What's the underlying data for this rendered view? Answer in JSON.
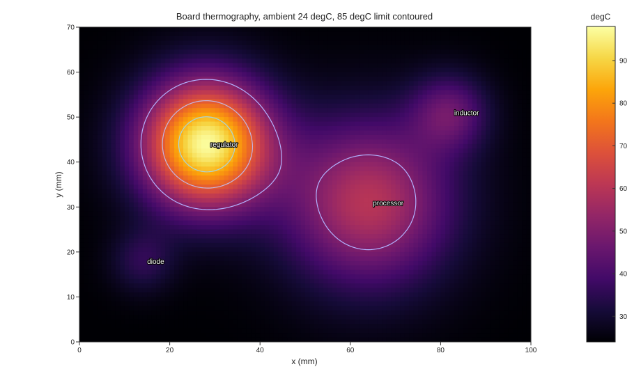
{
  "chart_data": {
    "type": "heatmap",
    "title": "Board thermography, ambient 24 degC, 85 degC limit contoured",
    "xlabel": "x (mm)",
    "ylabel": "y (mm)",
    "xlim": [
      0,
      100
    ],
    "ylim": [
      0,
      70
    ],
    "xticks": [
      0,
      20,
      40,
      60,
      80,
      100
    ],
    "yticks": [
      0,
      10,
      20,
      30,
      40,
      50,
      60,
      70
    ],
    "colorbar": {
      "title": "degC",
      "range": [
        24,
        98
      ],
      "ticks": [
        30,
        40,
        50,
        60,
        70,
        80,
        90
      ],
      "colormap": "inferno"
    },
    "ambient": 24,
    "limit": 85,
    "sources": [
      {
        "label": "regulator",
        "x": 28,
        "y": 44,
        "peak": 97,
        "sigma": 10
      },
      {
        "label": "processor",
        "x": 64,
        "y": 31,
        "peak": 60,
        "sigma": 13
      },
      {
        "label": "inductor",
        "x": 82,
        "y": 51,
        "peak": 44,
        "sigma": 6
      },
      {
        "label": "diode",
        "x": 14,
        "y": 18,
        "peak": 35,
        "sigma": 5
      }
    ],
    "contour_levels": [
      50,
      70,
      85
    ],
    "grid": false
  }
}
